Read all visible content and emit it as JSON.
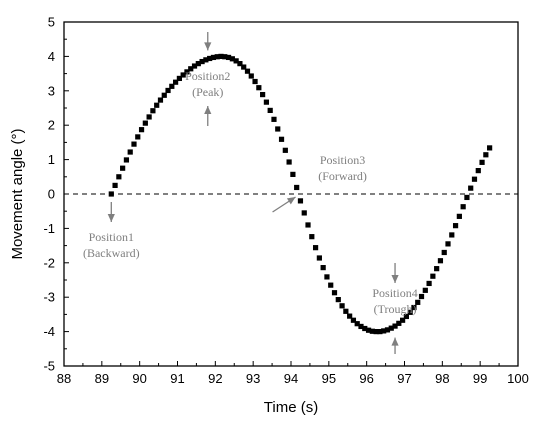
{
  "chart_data": {
    "type": "scatter",
    "xlabel": "Time (s)",
    "ylabel": "Movement angle (°)",
    "xlim": [
      88,
      100
    ],
    "ylim": [
      -5,
      5
    ],
    "xticks": [
      88,
      89,
      90,
      91,
      92,
      93,
      94,
      95,
      96,
      97,
      98,
      99,
      100
    ],
    "yticks": [
      -5,
      -4,
      -3,
      -2,
      -1,
      0,
      1,
      2,
      3,
      4,
      5
    ],
    "grid": false,
    "legend": "none",
    "zero_reference_line": "dashed",
    "series": [
      {
        "marker": "square",
        "color": "#000000",
        "x": [
          89.25,
          89.35,
          89.45,
          89.55,
          89.65,
          89.75,
          89.85,
          89.95,
          90.05,
          90.15,
          90.25,
          90.35,
          90.45,
          90.55,
          90.65,
          90.75,
          90.85,
          90.95,
          91.05,
          91.15,
          91.25,
          91.35,
          91.45,
          91.55,
          91.65,
          91.75,
          91.85,
          91.95,
          92.05,
          92.15,
          92.25,
          92.35,
          92.45,
          92.55,
          92.65,
          92.75,
          92.85,
          92.95,
          93.05,
          93.15,
          93.25,
          93.35,
          93.45,
          93.55,
          93.65,
          93.75,
          93.85,
          93.95,
          94.05,
          94.15,
          94.25,
          94.35,
          94.45,
          94.55,
          94.65,
          94.75,
          94.85,
          94.95,
          95.05,
          95.15,
          95.25,
          95.35,
          95.45,
          95.55,
          95.65,
          95.75,
          95.85,
          95.95,
          96.05,
          96.15,
          96.25,
          96.35,
          96.45,
          96.55,
          96.65,
          96.75,
          96.85,
          96.95,
          97.05,
          97.15,
          97.25,
          97.35,
          97.45,
          97.55,
          97.65,
          97.75,
          97.85,
          97.95,
          98.05,
          98.15,
          98.25,
          98.35,
          98.45,
          98.55,
          98.65,
          98.75,
          98.85,
          98.95,
          99.05,
          99.15,
          99.25
        ],
        "y": [
          0,
          0.25,
          0.5,
          0.75,
          0.99,
          1.22,
          1.45,
          1.66,
          1.87,
          2.06,
          2.24,
          2.42,
          2.58,
          2.73,
          2.87,
          3.01,
          3.13,
          3.25,
          3.36,
          3.46,
          3.55,
          3.64,
          3.72,
          3.79,
          3.85,
          3.9,
          3.94,
          3.97,
          3.99,
          4.0,
          3.99,
          3.97,
          3.93,
          3.87,
          3.79,
          3.69,
          3.57,
          3.43,
          3.27,
          3.09,
          2.89,
          2.67,
          2.43,
          2.17,
          1.89,
          1.59,
          1.27,
          0.93,
          0.57,
          0.19,
          -0.2,
          -0.55,
          -0.9,
          -1.24,
          -1.56,
          -1.86,
          -2.14,
          -2.41,
          -2.65,
          -2.87,
          -3.07,
          -3.25,
          -3.41,
          -3.55,
          -3.67,
          -3.77,
          -3.85,
          -3.91,
          -3.96,
          -3.99,
          -4.0,
          -4.0,
          -3.98,
          -3.95,
          -3.9,
          -3.84,
          -3.76,
          -3.67,
          -3.56,
          -3.44,
          -3.3,
          -3.15,
          -2.98,
          -2.8,
          -2.6,
          -2.39,
          -2.17,
          -1.94,
          -1.7,
          -1.45,
          -1.19,
          -0.92,
          -0.65,
          -0.37,
          -0.1,
          0.17,
          0.43,
          0.68,
          0.92,
          1.14,
          1.34
        ]
      }
    ],
    "annotations": [
      {
        "text": [
          "Position1",
          "(Backward)"
        ],
        "x": 89.25,
        "y": 0
      },
      {
        "text": [
          "Position2",
          "(Peak)"
        ],
        "x": 91.8,
        "y": 4
      },
      {
        "text": [
          "Position3",
          "(Forward)"
        ],
        "x": 94.2,
        "y": 0
      },
      {
        "text": [
          "Position4",
          "(Trough)"
        ],
        "x": 96.75,
        "y": -4
      }
    ]
  }
}
